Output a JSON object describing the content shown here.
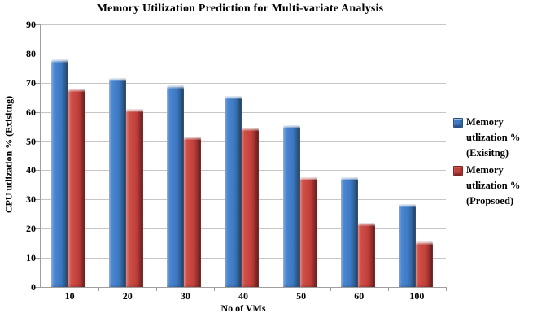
{
  "chart_data": {
    "type": "bar",
    "title": "Memory Utilization Prediction for Multi-variate Analysis",
    "xlabel": "No of VMs",
    "ylabel": "CPU utlization % (Exisitng)",
    "categories": [
      "10",
      "20",
      "30",
      "40",
      "50",
      "60",
      "100"
    ],
    "series": [
      {
        "name": "Memory utlization % (Exisitng)",
        "color": "#3d79c4",
        "values": [
          78,
          71.5,
          69,
          65.5,
          55.5,
          37.5,
          28.5
        ]
      },
      {
        "name": "Memory utlization % (Propsoed)",
        "color": "#c4403b",
        "values": [
          68,
          61,
          51.5,
          54.5,
          37.5,
          22,
          15.5
        ]
      }
    ],
    "legend_labels": [
      [
        "Memory",
        "utlization %",
        "(Exisitng)"
      ],
      [
        "Memory",
        "utlization %",
        "(Propsoed)"
      ]
    ],
    "ylim": [
      0,
      90
    ],
    "yticks": [
      0,
      10,
      20,
      30,
      40,
      50,
      60,
      70,
      80,
      90
    ],
    "grid": true,
    "legend_position": "right",
    "colors": {
      "gridline": "#c6c6c6",
      "axis": "#9e9e9e",
      "background": "#ffffff",
      "text": "#000000"
    }
  }
}
